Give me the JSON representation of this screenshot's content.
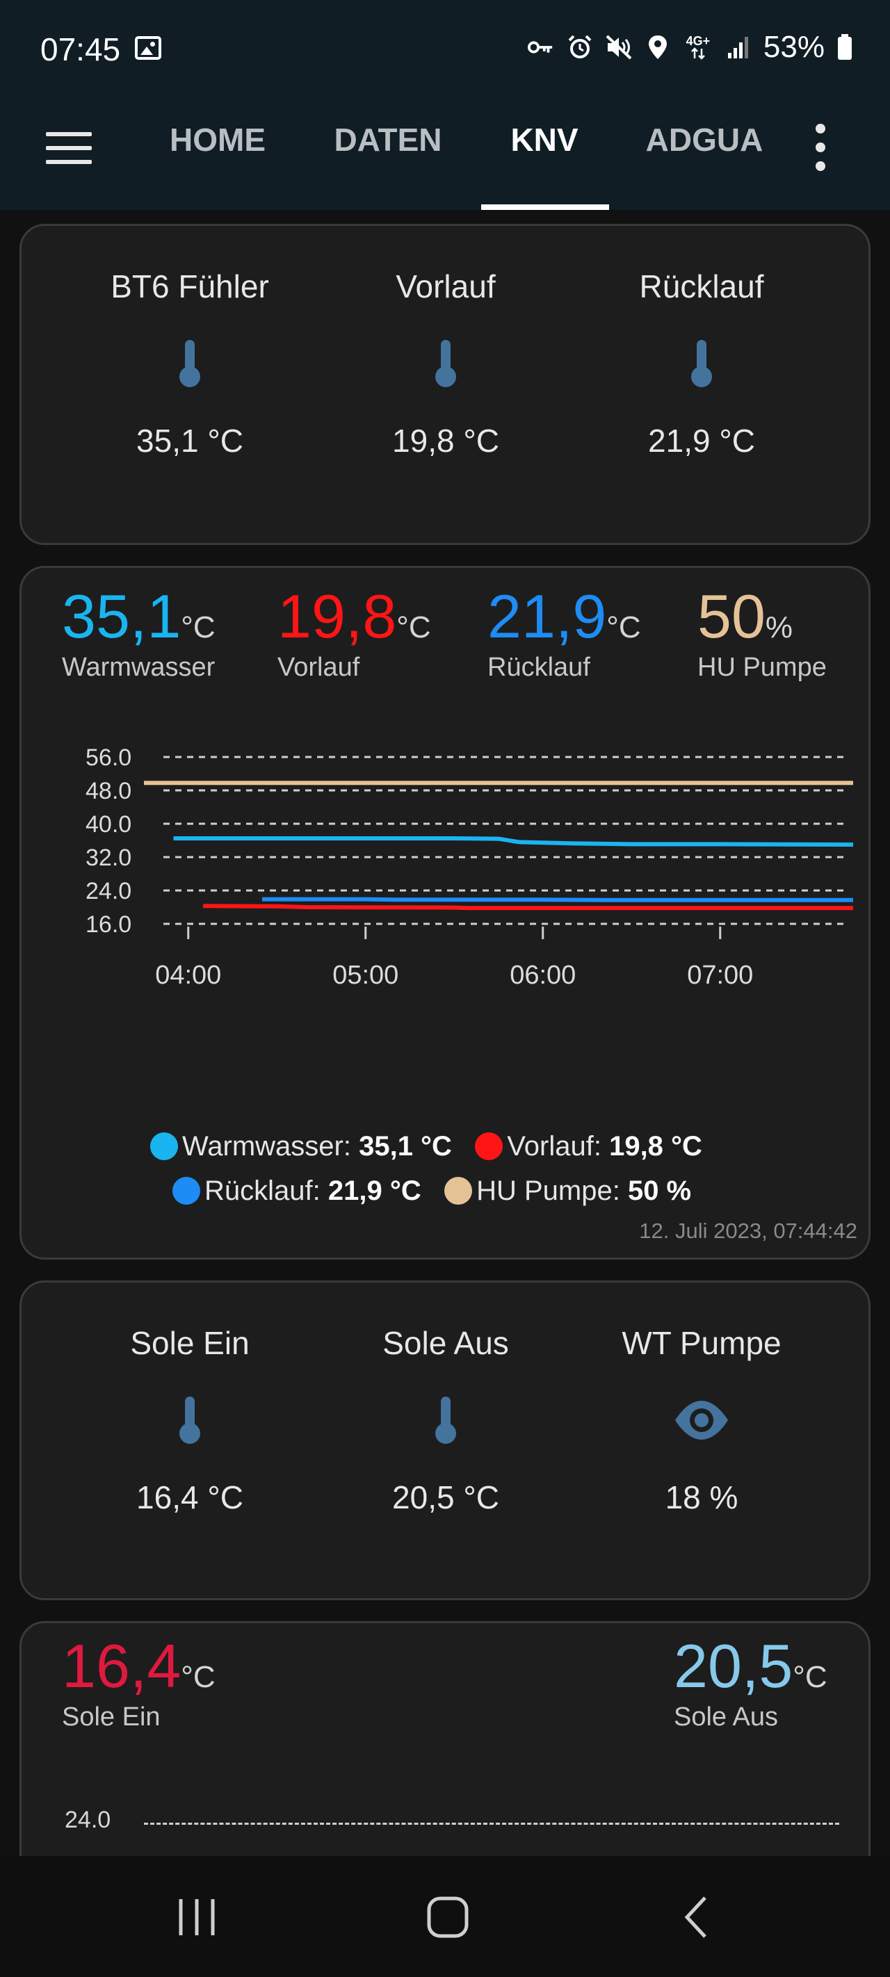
{
  "status_bar": {
    "time": "07:45",
    "battery": "53%",
    "network": "4G+",
    "icons": [
      "gallery-icon",
      "key-icon",
      "alarm-icon",
      "mute-icon",
      "location-icon",
      "network-icon",
      "signal-icon",
      "battery-icon"
    ]
  },
  "app_bar": {
    "tabs": [
      "HOME",
      "DATEN",
      "KNV",
      "ADGUA"
    ],
    "active_tab": "KNV"
  },
  "card1": {
    "sensors": [
      {
        "name": "BT6 Fühler",
        "value": "35,1 °C",
        "icon": "thermometer-icon"
      },
      {
        "name": "Vorlauf",
        "value": "19,8 °C",
        "icon": "thermometer-icon"
      },
      {
        "name": "Rücklauf",
        "value": "21,9 °C",
        "icon": "thermometer-icon"
      }
    ]
  },
  "card2": {
    "headers": [
      {
        "value": "35,1",
        "unit": "°C",
        "label": "Warmwasser",
        "color": "#19b5f0"
      },
      {
        "value": "19,8",
        "unit": "°C",
        "label": "Vorlauf",
        "color": "#ff1515"
      },
      {
        "value": "21,9",
        "unit": "°C",
        "label": "Rücklauf",
        "color": "#1e8cf5"
      },
      {
        "value": "50",
        "unit": "%",
        "label": "HU Pumpe",
        "color": "#e5c296"
      }
    ],
    "legend": [
      {
        "name": "Warmwasser:",
        "value": "35,1 °C",
        "color": "#19b5f0"
      },
      {
        "name": "Vorlauf:",
        "value": "19,8 °C",
        "color": "#ff1515"
      },
      {
        "name": "Rücklauf:",
        "value": "21,9 °C",
        "color": "#1e8cf5"
      },
      {
        "name": "HU Pumpe:",
        "value": "50 %",
        "color": "#e5c296"
      }
    ],
    "timestamp": "12. Juli 2023, 07:44:42"
  },
  "card3": {
    "sensors": [
      {
        "name": "Sole Ein",
        "value": "16,4 °C",
        "icon": "thermometer-icon"
      },
      {
        "name": "Sole Aus",
        "value": "20,5 °C",
        "icon": "thermometer-icon"
      },
      {
        "name": "WT Pumpe",
        "value": "18 %",
        "icon": "eye-icon"
      }
    ]
  },
  "card4": {
    "headers": [
      {
        "value": "16,4",
        "unit": "°C",
        "label": "Sole Ein",
        "color": "#e0193f"
      },
      {
        "value": "20,5",
        "unit": "°C",
        "label": "Sole Aus",
        "color": "#86c9ea"
      }
    ],
    "visible_tick": "24.0"
  },
  "chart_data": [
    {
      "type": "line",
      "ylim": [
        16,
        56
      ],
      "yticks": [
        "56.0",
        "48.0",
        "40.0",
        "32.0",
        "24.0",
        "16.0"
      ],
      "xlim": [
        "03:45",
        "07:45"
      ],
      "xticks": [
        "04:00",
        "05:00",
        "06:00",
        "07:00"
      ],
      "grid": true,
      "legend_position": "bottom",
      "series": [
        {
          "name": "Warmwasser",
          "color": "#19b5f0",
          "x": [
            "03:55",
            "04:30",
            "05:00",
            "05:30",
            "05:45",
            "05:52",
            "06:10",
            "06:30",
            "07:00",
            "07:45"
          ],
          "y": [
            36.5,
            36.5,
            36.5,
            36.5,
            36.4,
            35.6,
            35.3,
            35.1,
            35.1,
            35.0
          ]
        },
        {
          "name": "Vorlauf",
          "color": "#ff1515",
          "x": [
            "04:05",
            "04:30",
            "04:40",
            "05:30",
            "05:35",
            "06:00",
            "07:00",
            "07:45"
          ],
          "y": [
            20.3,
            20.2,
            20.0,
            19.9,
            19.8,
            19.8,
            19.8,
            19.8
          ]
        },
        {
          "name": "Rücklauf",
          "color": "#1e8cf5",
          "x": [
            "04:25",
            "05:00",
            "05:10",
            "06:00",
            "06:20",
            "07:00",
            "07:45"
          ],
          "y": [
            21.9,
            21.9,
            21.8,
            21.8,
            21.7,
            21.7,
            21.7
          ]
        },
        {
          "name": "HU Pumpe",
          "color": "#e5c296",
          "x": [
            "03:45",
            "07:45"
          ],
          "y": [
            49.8,
            49.8
          ]
        }
      ]
    }
  ],
  "nav_bar": {
    "buttons": [
      "recent-apps",
      "home",
      "back"
    ]
  }
}
